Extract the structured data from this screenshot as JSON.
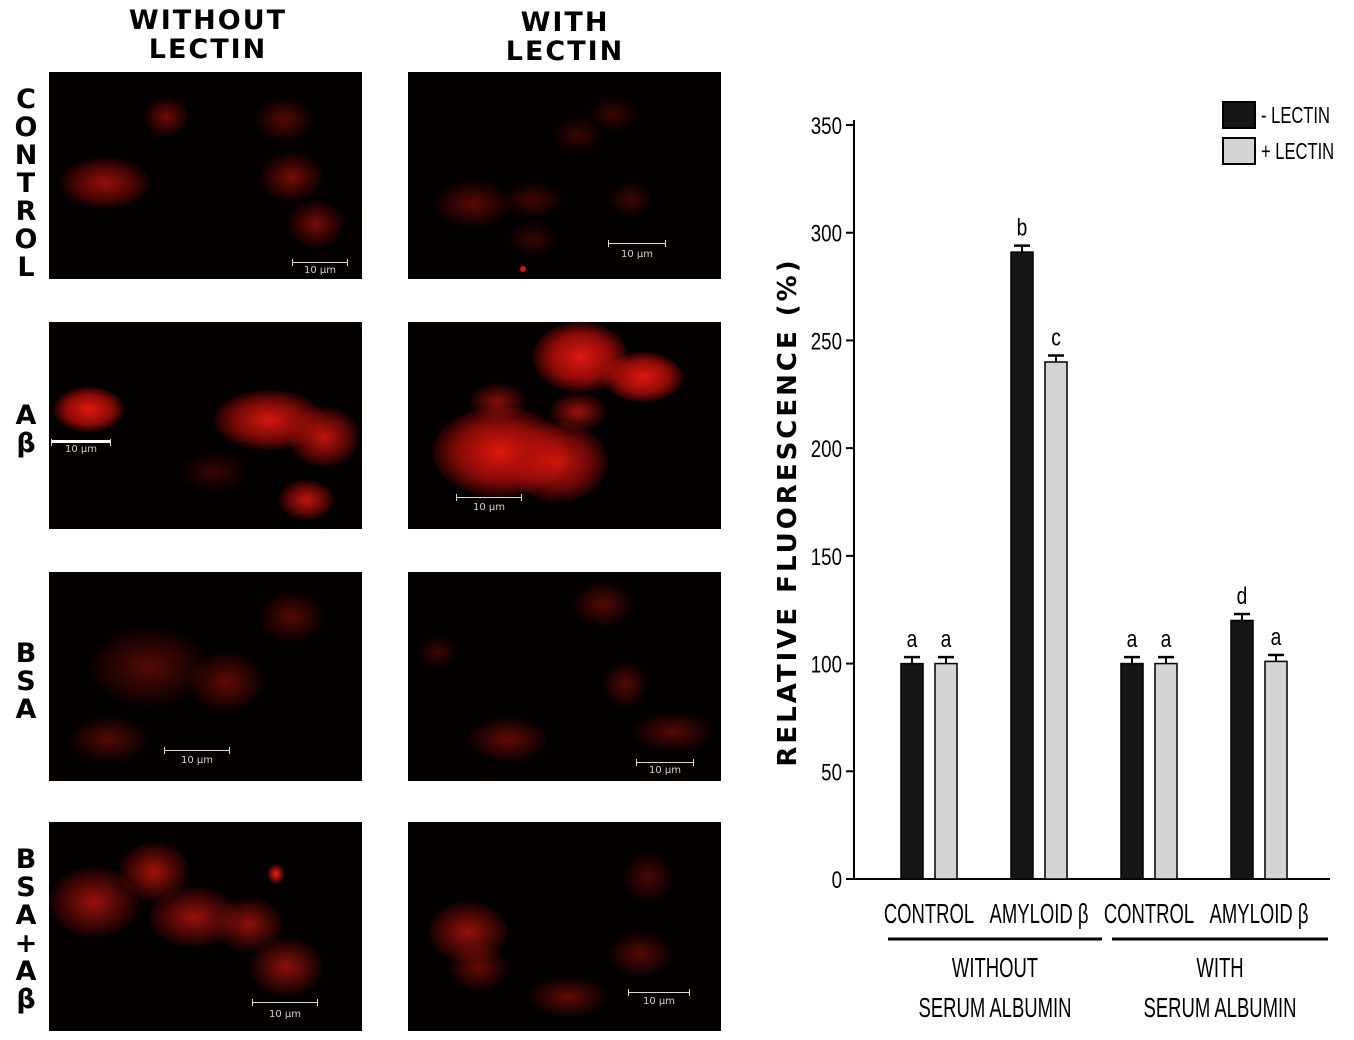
{
  "column_headers": [
    "WITHOUT\nLECTIN",
    "WITH\nLECTIN"
  ],
  "row_labels": [
    [
      "C",
      "O",
      "N",
      "T",
      "R",
      "O",
      "L"
    ],
    [
      "A",
      "β"
    ],
    [
      "B",
      "S",
      "A"
    ],
    [
      "B",
      "S",
      "A",
      "+",
      "A",
      "β"
    ]
  ],
  "scale_bar_label": "10 μm",
  "colors": {
    "bar_minus_lectin": "#161616",
    "bar_plus_lectin": "#d4d4d4",
    "micrograph_signal": "#e00000",
    "micrograph_background": "#050000"
  },
  "chart_data": {
    "type": "bar",
    "ylabel": "RELATIVE FLUORESCENCE (%)",
    "ylim": [
      0,
      350
    ],
    "yticks": [
      0,
      50,
      100,
      150,
      200,
      250,
      300,
      350
    ],
    "legend_position": "top-right",
    "series": [
      {
        "name": "- LECTIN",
        "color": "#161616",
        "values": [
          100,
          291,
          100,
          120
        ],
        "errors": [
          3,
          3,
          3,
          3
        ],
        "letters": [
          "a",
          "b",
          "a",
          "d"
        ]
      },
      {
        "name": "+ LECTIN",
        "color": "#d4d4d4",
        "values": [
          100,
          240,
          100,
          101
        ],
        "errors": [
          3,
          3,
          3,
          3
        ],
        "letters": [
          "a",
          "c",
          "a",
          "a"
        ]
      }
    ],
    "categories": [
      "CONTROL",
      "AMYLOID β",
      "CONTROL",
      "AMYLOID β"
    ],
    "groups": [
      {
        "label_lines": [
          "WITHOUT",
          "SERUM ALBUMIN"
        ],
        "categories": [
          0,
          1
        ]
      },
      {
        "label_lines": [
          "WITH",
          "SERUM ALBUMIN"
        ],
        "categories": [
          2,
          3
        ]
      }
    ]
  }
}
